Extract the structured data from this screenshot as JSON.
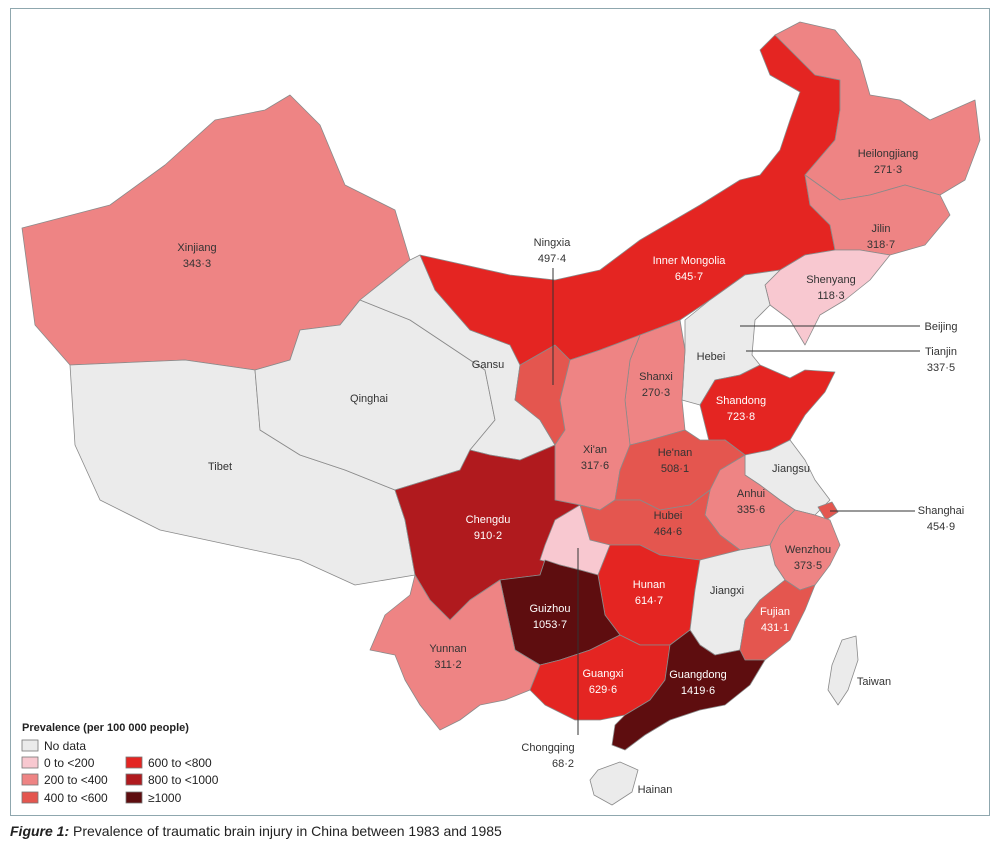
{
  "legend": {
    "title": "Prevalence (per 100 000 people)",
    "bins": [
      {
        "label": "No data",
        "color": "#ebebeb"
      },
      {
        "label": "0 to <200",
        "color": "#f8c8d0"
      },
      {
        "label": "200 to <400",
        "color": "#ee8484"
      },
      {
        "label": "400 to <600",
        "color": "#e4564f"
      },
      {
        "label": "600 to <800",
        "color": "#e42522"
      },
      {
        "label": "800 to <1000",
        "color": "#b01a1e"
      },
      {
        "label": "≥1000",
        "color": "#5e0d0f"
      }
    ]
  },
  "regions": [
    {
      "name": "Xinjiang",
      "value": "343·3",
      "bin": 2
    },
    {
      "name": "Tibet",
      "value": "",
      "bin": 0
    },
    {
      "name": "Qinghai",
      "value": "",
      "bin": 0
    },
    {
      "name": "Gansu",
      "value": "",
      "bin": 0
    },
    {
      "name": "Ningxia",
      "value": "497·4",
      "bin": 3
    },
    {
      "name": "Inner Mongolia",
      "value": "645·7",
      "bin": 4
    },
    {
      "name": "Heilongjiang",
      "value": "271·3",
      "bin": 2
    },
    {
      "name": "Jilin",
      "value": "318·7",
      "bin": 2
    },
    {
      "name": "Shenyang",
      "value": "118·3",
      "bin": 1
    },
    {
      "name": "Beijing",
      "value": "",
      "bin": 0
    },
    {
      "name": "Tianjin",
      "value": "337·5",
      "bin": 2
    },
    {
      "name": "Hebei",
      "value": "",
      "bin": 0
    },
    {
      "name": "Shanxi",
      "value": "270·3",
      "bin": 2
    },
    {
      "name": "Shandong",
      "value": "723·8",
      "bin": 4
    },
    {
      "name": "Xi'an",
      "value": "317·6",
      "bin": 2
    },
    {
      "name": "He'nan",
      "value": "508·1",
      "bin": 3
    },
    {
      "name": "Jiangsu",
      "value": "",
      "bin": 0
    },
    {
      "name": "Anhui",
      "value": "335·6",
      "bin": 2
    },
    {
      "name": "Shanghai",
      "value": "454·9",
      "bin": 3
    },
    {
      "name": "Hubei",
      "value": "464·6",
      "bin": 3
    },
    {
      "name": "Chengdu",
      "value": "910·2",
      "bin": 5
    },
    {
      "name": "Chongqing",
      "value": "68·2",
      "bin": 1
    },
    {
      "name": "Wenzhou",
      "value": "373·5",
      "bin": 2
    },
    {
      "name": "Hunan",
      "value": "614·7",
      "bin": 4
    },
    {
      "name": "Guizhou",
      "value": "1053·7",
      "bin": 6
    },
    {
      "name": "Jiangxi",
      "value": "",
      "bin": 0
    },
    {
      "name": "Fujian",
      "value": "431·1",
      "bin": 3
    },
    {
      "name": "Yunnan",
      "value": "311·2",
      "bin": 2
    },
    {
      "name": "Guangxi",
      "value": "629·6",
      "bin": 4
    },
    {
      "name": "Guangdong",
      "value": "1419·6",
      "bin": 6
    },
    {
      "name": "Taiwan",
      "value": "",
      "bin": 0
    },
    {
      "name": "Hainan",
      "value": "",
      "bin": 0
    }
  ],
  "caption": {
    "figure_label": "Figure 1:",
    "text": " Prevalence of traumatic brain injury in China between 1983 and 1985"
  }
}
